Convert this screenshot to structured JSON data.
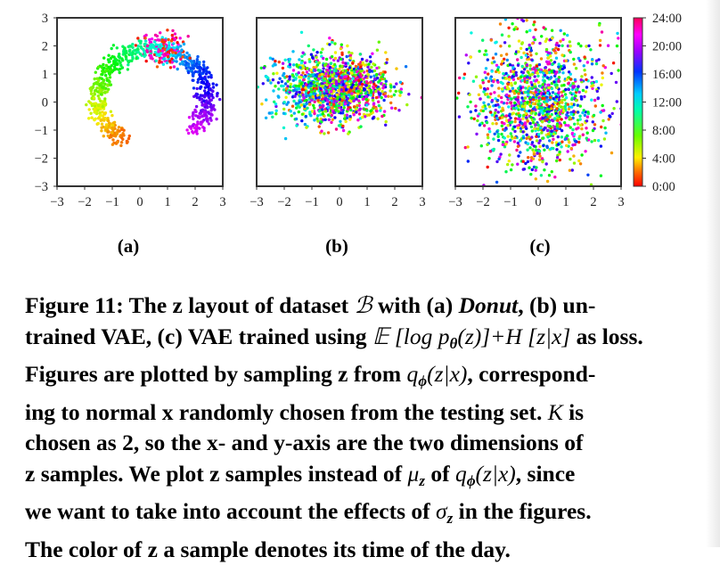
{
  "chart_data": [
    {
      "type": "scatter",
      "panel_label": "(a)",
      "description_shape": "ring",
      "xlim": [
        -3,
        3
      ],
      "ylim": [
        -3,
        3
      ],
      "x_ticks": [
        "−3",
        "−2",
        "−1",
        "0",
        "1",
        "2",
        "3"
      ],
      "y_ticks": [
        "3",
        "2",
        "1",
        "0",
        "−1",
        "−2",
        "−3"
      ],
      "color_encoding": "time of day"
    },
    {
      "type": "scatter",
      "panel_label": "(b)",
      "description_shape": "blob",
      "xlim": [
        -3,
        3
      ],
      "ylim": [
        -3,
        3
      ],
      "x_ticks": [
        "−3",
        "−2",
        "−1",
        "0",
        "1",
        "2",
        "3"
      ],
      "color_encoding": "time of day"
    },
    {
      "type": "scatter",
      "panel_label": "(c)",
      "description_shape": "gaussian",
      "xlim": [
        -3,
        3
      ],
      "ylim": [
        -3,
        3
      ],
      "x_ticks": [
        "−3",
        "−2",
        "−1",
        "0",
        "1",
        "2",
        "3"
      ],
      "color_encoding": "time of day",
      "colorbar_ticks": [
        "24:00",
        "20:00",
        "16:00",
        "12:00",
        "8:00",
        "4:00",
        "0:00"
      ]
    }
  ],
  "caption": {
    "lines": [
      [
        "Figure 11: The z layout of dataset ",
        {
          "math": "ℬ"
        },
        " with (a) ",
        {
          "it": "Donut"
        },
        ", (b) un-"
      ],
      [
        "trained VAE, (c) VAE trained using ",
        {
          "math": "𝔼 [log p"
        },
        {
          "sub": "θ"
        },
        {
          "math": "(z)]+H [z|x]"
        },
        " as loss."
      ],
      [
        "Figures are plotted by sampling z from ",
        {
          "math": "q"
        },
        {
          "sub": "ϕ"
        },
        {
          "math": "(z|x)"
        },
        ", correspond-"
      ],
      [
        "ing to normal x randomly chosen from the testing set. ",
        {
          "math": "K"
        },
        " is"
      ],
      [
        "chosen as 2, so the x- and y-axis are the two dimensions of"
      ],
      [
        "z samples. We plot z samples instead of ",
        {
          "math": "μ"
        },
        {
          "sub": "z"
        },
        " of ",
        {
          "math": "q"
        },
        {
          "sub": "ϕ"
        },
        {
          "math": "(z|x)"
        },
        ", since"
      ],
      [
        "we want to take into account the effects of ",
        {
          "math": "σ"
        },
        {
          "sub": "z"
        },
        " in the figures."
      ],
      [
        "The color of z a sample denotes its time of the day."
      ]
    ]
  }
}
